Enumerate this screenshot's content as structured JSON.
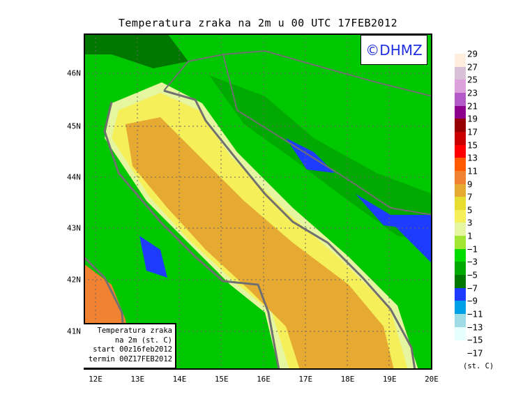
{
  "title": "Temperatura zraka na 2m u 00 UTC 17FEB2012",
  "watermark": "©DHMZ",
  "info_box": {
    "line1": "Temperatura zraka",
    "line2": "na 2m (st. C)",
    "line3": "start 00z16feb2012",
    "line4": "termin 00Z17FEB2012"
  },
  "lon_labels": [
    "12E",
    "13E",
    "14E",
    "15E",
    "16E",
    "17E",
    "18E",
    "19E",
    "20E"
  ],
  "lat_labels": [
    "46N",
    "45N",
    "44N",
    "43N",
    "42N",
    "41N"
  ],
  "colorbar": {
    "labels": [
      "29",
      "27",
      "25",
      "23",
      "21",
      "19",
      "17",
      "15",
      "13",
      "11",
      "9",
      "7",
      "5",
      "3",
      "1",
      "−1",
      "−3",
      "−5",
      "−7",
      "−9",
      "−11",
      "−13",
      "−15",
      "−17"
    ],
    "colors": [
      "#ffeedd",
      "#d8c0d8",
      "#dca0dc",
      "#b45ac8",
      "#8c008c",
      "#960000",
      "#c80000",
      "#ff0000",
      "#ff5a00",
      "#f08232",
      "#e6aa32",
      "#e6dc32",
      "#f5f05a",
      "#e6f5a0",
      "#a0e632",
      "#00dc00",
      "#00aa00",
      "#007800",
      "#1e3cff",
      "#00a0e6",
      "#a0dce6",
      "#e6ffff"
    ],
    "unit": "(st. C)"
  }
}
